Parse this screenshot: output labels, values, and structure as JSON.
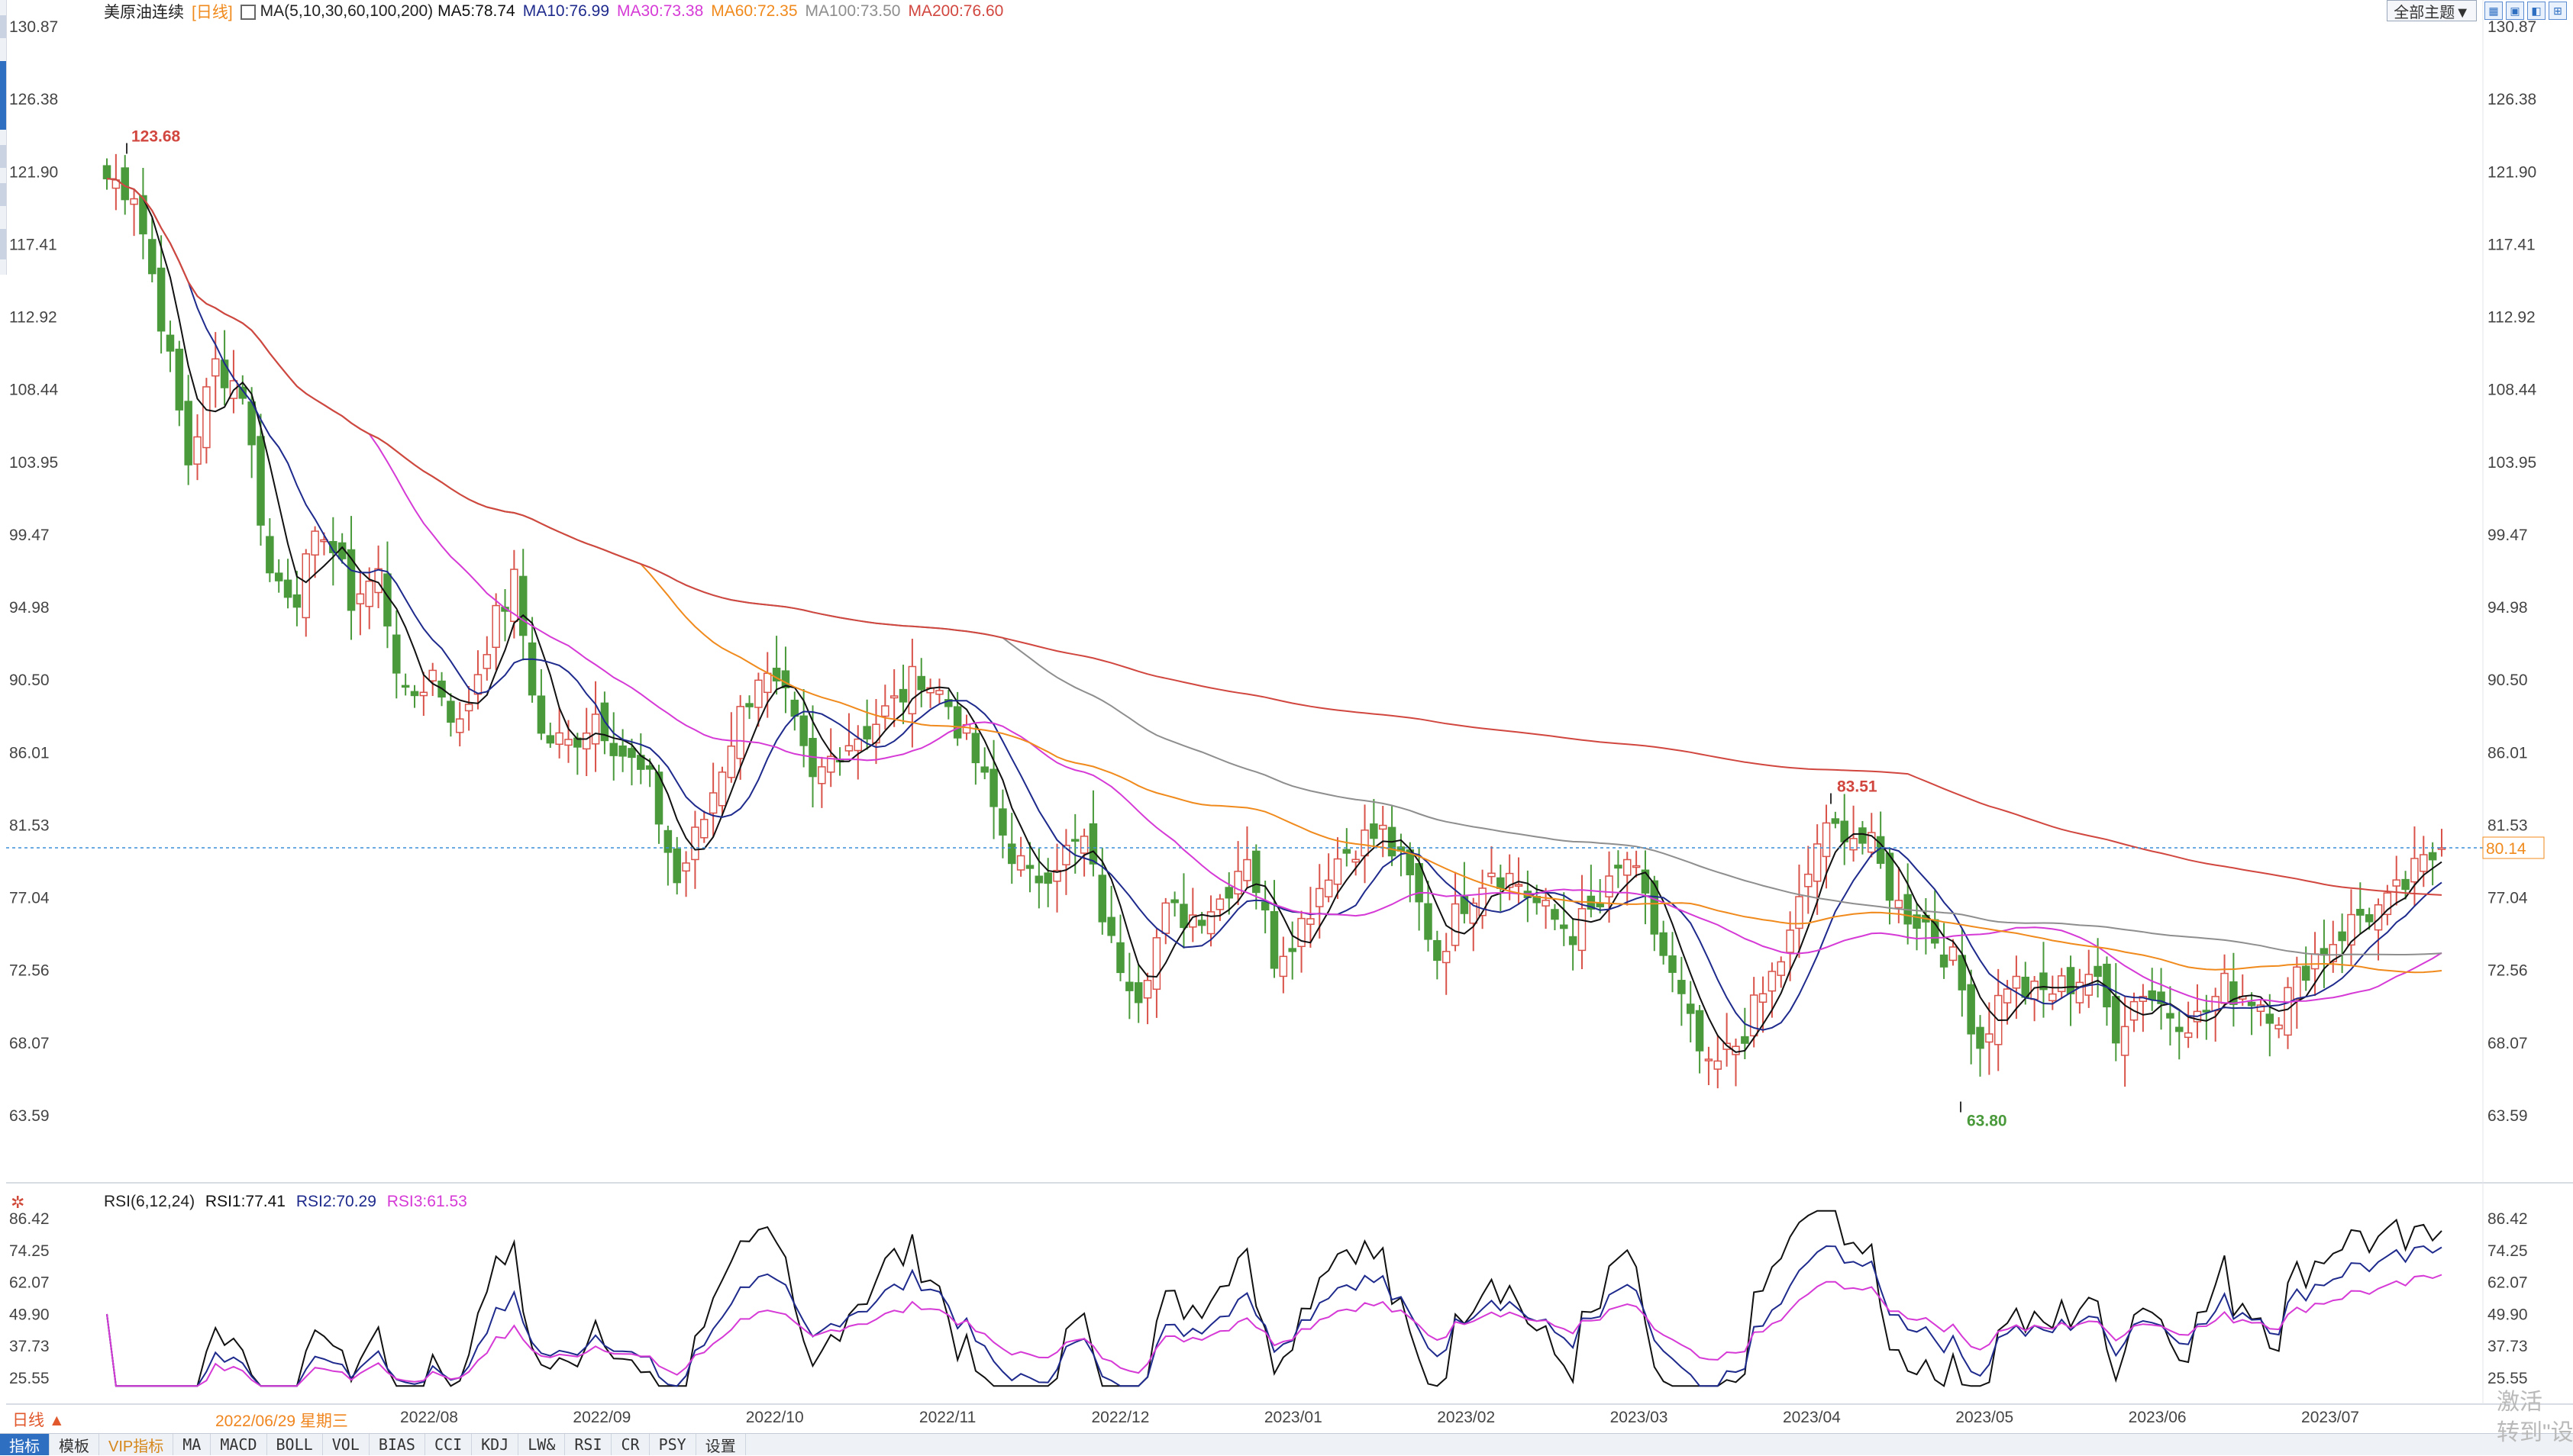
{
  "header": {
    "symbol": "美原油连续",
    "period_tag": "[日线]",
    "ma_label": "MA(5,10,30,60,100,200)",
    "ma5": "MA5:78.74",
    "ma10": "MA10:76.99",
    "ma30": "MA30:73.38",
    "ma60": "MA60:72.35",
    "ma100": "MA100:73.50",
    "ma200": "MA200:76.60"
  },
  "toolbar": {
    "theme_label": "全部主题▼",
    "icons": [
      "grid-icon",
      "layout-icon",
      "window-icon",
      "settings-icon"
    ]
  },
  "colors": {
    "up": "#d9534a",
    "down": "#4a9a3c",
    "ma5": "#111111",
    "ma10": "#1e2a8c",
    "ma30": "#d63ad6",
    "ma60": "#f08a1c",
    "ma100": "#8e8e8e",
    "ma200": "#d1473f",
    "rsi1": "#111111",
    "rsi2": "#1e2a8c",
    "rsi3": "#d63ad6"
  },
  "price_axis": {
    "ticks": [
      "130.87",
      "126.38",
      "121.90",
      "117.41",
      "112.92",
      "108.44",
      "103.95",
      "99.47",
      "94.98",
      "90.50",
      "86.01",
      "81.53",
      "77.04",
      "72.56",
      "68.07",
      "63.59"
    ],
    "current_price_label": "80.14"
  },
  "annotations": {
    "high1": "123.68",
    "high2": "83.51",
    "low1": "63.80"
  },
  "rsi": {
    "label": "RSI(6,12,24)",
    "rsi1": "RSI1:77.41",
    "rsi2": "RSI2:70.29",
    "rsi3": "RSI3:61.53",
    "ticks": [
      "86.42",
      "74.25",
      "62.07",
      "49.90",
      "37.73",
      "25.55"
    ]
  },
  "bottom": {
    "period_button": "日线 ▲",
    "current_date": "2022/06/29 星期三",
    "months": [
      "2022/08",
      "2022/09",
      "2022/10",
      "2022/11",
      "2022/12",
      "2023/01",
      "2023/02",
      "2023/03",
      "2023/04",
      "2023/05",
      "2023/06",
      "2023/07"
    ]
  },
  "tabs": [
    "指标",
    "模板",
    "VIP指标",
    "MA",
    "MACD",
    "BOLL",
    "VOL",
    "BIAS",
    "CCI",
    "KDJ",
    "LW&",
    "RSI",
    "CR",
    "PSY",
    "设置"
  ],
  "watermark": {
    "line1": "激活",
    "line2": "转到\"设"
  },
  "chart_data": [
    {
      "type": "candlestick",
      "title": "美原油连续 [日线]",
      "ylim": [
        63.59,
        130.87
      ],
      "x_period": [
        "2022/06/29",
        "2023/07"
      ],
      "x_ticks": [
        "2022/08",
        "2022/09",
        "2022/10",
        "2022/11",
        "2022/12",
        "2023/01",
        "2023/02",
        "2023/03",
        "2023/04",
        "2023/05",
        "2023/06",
        "2023/07"
      ],
      "close_path_anchors": [
        [
          0,
          121.5
        ],
        [
          3,
          120.8
        ],
        [
          6,
          113.0
        ],
        [
          9,
          104.0
        ],
        [
          12,
          110.0
        ],
        [
          15,
          108.5
        ],
        [
          18,
          97.0
        ],
        [
          21,
          96.0
        ],
        [
          24,
          100.0
        ],
        [
          27,
          95.5
        ],
        [
          30,
          97.0
        ],
        [
          33,
          89.0
        ],
        [
          36,
          91.0
        ],
        [
          39,
          87.5
        ],
        [
          42,
          93.0
        ],
        [
          45,
          96.5
        ],
        [
          48,
          87.0
        ],
        [
          51,
          86.5
        ],
        [
          54,
          88.5
        ],
        [
          57,
          86.0
        ],
        [
          60,
          84.0
        ],
        [
          63,
          78.0
        ],
        [
          66,
          82.0
        ],
        [
          69,
          87.0
        ],
        [
          72,
          91.0
        ],
        [
          75,
          89.0
        ],
        [
          78,
          84.0
        ],
        [
          81,
          86.5
        ],
        [
          84,
          87.5
        ],
        [
          87,
          89.0
        ],
        [
          90,
          91.0
        ],
        [
          93,
          89.0
        ],
        [
          96,
          85.5
        ],
        [
          99,
          81.0
        ],
        [
          102,
          78.0
        ],
        [
          105,
          79.5
        ],
        [
          108,
          80.5
        ],
        [
          111,
          74.0
        ],
        [
          114,
          71.5
        ],
        [
          117,
          76.0
        ],
        [
          120,
          76.0
        ],
        [
          123,
          77.0
        ],
        [
          126,
          80.0
        ],
        [
          129,
          73.5
        ],
        [
          132,
          75.5
        ],
        [
          135,
          79.0
        ],
        [
          138,
          80.5
        ],
        [
          141,
          81.0
        ],
        [
          144,
          78.0
        ],
        [
          147,
          73.5
        ],
        [
          150,
          77.0
        ],
        [
          153,
          79.0
        ],
        [
          156,
          78.0
        ],
        [
          159,
          76.0
        ],
        [
          162,
          75.0
        ],
        [
          165,
          76.5
        ],
        [
          168,
          79.5
        ],
        [
          171,
          75.0
        ],
        [
          174,
          70.5
        ],
        [
          177,
          66.0
        ],
        [
          180,
          68.0
        ],
        [
          183,
          71.0
        ],
        [
          186,
          74.5
        ],
        [
          189,
          80.5
        ],
        [
          192,
          81.5
        ],
        [
          195,
          80.0
        ],
        [
          198,
          76.5
        ],
        [
          201,
          75.5
        ],
        [
          204,
          73.0
        ],
        [
          207,
          68.0
        ],
        [
          210,
          72.0
        ],
        [
          213,
          71.0
        ],
        [
          216,
          71.5
        ],
        [
          219,
          72.5
        ],
        [
          222,
          69.0
        ],
        [
          225,
          71.5
        ],
        [
          228,
          70.0
        ],
        [
          231,
          69.5
        ],
        [
          234,
          71.5
        ],
        [
          237,
          71.0
        ],
        [
          240,
          70.0
        ],
        [
          243,
          73.0
        ],
        [
          246,
          74.5
        ],
        [
          249,
          76.0
        ],
        [
          252,
          76.5
        ],
        [
          255,
          78.5
        ],
        [
          258,
          80.14
        ]
      ],
      "highs": [
        {
          "label": "123.68",
          "value": 123.68
        },
        {
          "label": "83.51",
          "value": 83.51
        }
      ],
      "lows": [
        {
          "label": "63.80",
          "value": 63.8
        }
      ],
      "last_price": 80.14,
      "series": [
        {
          "name": "MA5",
          "last": 78.74
        },
        {
          "name": "MA10",
          "last": 76.99
        },
        {
          "name": "MA30",
          "last": 73.38
        },
        {
          "name": "MA60",
          "last": 72.35
        },
        {
          "name": "MA100",
          "last": 73.5
        },
        {
          "name": "MA200",
          "last": 76.6
        }
      ]
    },
    {
      "type": "line",
      "title": "RSI(6,12,24)",
      "ylim": [
        25.55,
        86.42
      ],
      "series": [
        {
          "name": "RSI1",
          "last": 77.41
        },
        {
          "name": "RSI2",
          "last": 70.29
        },
        {
          "name": "RSI3",
          "last": 61.53
        }
      ]
    }
  ]
}
